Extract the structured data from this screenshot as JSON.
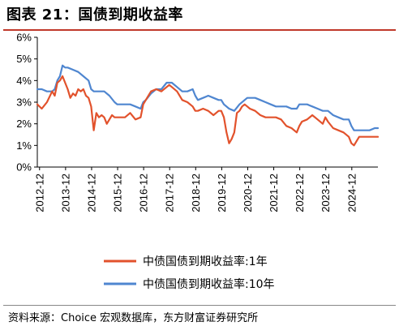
{
  "header": {
    "title": "图表 21：国债到期收益率"
  },
  "footer": {
    "source": "资料来源：Choice 宏观数据库，东方财富证券研究所"
  },
  "colors": {
    "series_1y": "#e2522c",
    "series_10y": "#4f86d0",
    "title_rule": "#c0392b"
  },
  "chart_data": {
    "type": "line",
    "title": "图表 21：国债到期收益率",
    "xlabel": "",
    "ylabel": "",
    "xlim": [
      2012.83,
      2025.92
    ],
    "ylim": [
      0,
      6
    ],
    "y_ticks": [
      "0%",
      "1%",
      "2%",
      "3%",
      "4%",
      "5%",
      "6%"
    ],
    "x_ticks": [
      "2012-12",
      "2013-12",
      "2014-12",
      "2015-12",
      "2016-12",
      "2017-12",
      "2018-12",
      "2019-12",
      "2020-12",
      "2021-12",
      "2022-12",
      "2023-12",
      "2024-12"
    ],
    "grid": false,
    "legend_position": "bottom",
    "series": [
      {
        "name": "中债国债到期收益率:1年",
        "x": [
          2012.83,
          2013.0,
          2013.2,
          2013.4,
          2013.5,
          2013.6,
          2013.7,
          2013.8,
          2013.9,
          2014.0,
          2014.1,
          2014.2,
          2014.3,
          2014.4,
          2014.5,
          2014.6,
          2014.7,
          2014.8,
          2014.9,
          2015.0,
          2015.1,
          2015.2,
          2015.3,
          2015.4,
          2015.5,
          2015.6,
          2015.7,
          2015.8,
          2015.9,
          2016.0,
          2016.2,
          2016.4,
          2016.6,
          2016.8,
          2016.9,
          2017.0,
          2017.2,
          2017.4,
          2017.6,
          2017.8,
          2017.9,
          2018.0,
          2018.2,
          2018.4,
          2018.6,
          2018.8,
          2018.9,
          2019.0,
          2019.2,
          2019.4,
          2019.6,
          2019.8,
          2019.9,
          2020.0,
          2020.1,
          2020.2,
          2020.3,
          2020.4,
          2020.5,
          2020.6,
          2020.7,
          2020.8,
          2020.9,
          2021.0,
          2021.2,
          2021.4,
          2021.6,
          2021.8,
          2022.0,
          2022.2,
          2022.4,
          2022.6,
          2022.8,
          2022.9,
          2023.0,
          2023.2,
          2023.4,
          2023.6,
          2023.8,
          2023.9,
          2024.0,
          2024.2,
          2024.4,
          2024.6,
          2024.8,
          2024.9,
          2025.0,
          2025.2,
          2025.4,
          2025.6,
          2025.8,
          2025.92
        ],
        "y": [
          2.9,
          2.7,
          3.0,
          3.5,
          3.3,
          3.9,
          4.0,
          4.2,
          3.9,
          3.6,
          3.2,
          3.4,
          3.3,
          3.6,
          3.5,
          3.6,
          3.3,
          3.2,
          2.8,
          1.7,
          2.5,
          2.3,
          2.4,
          2.3,
          2.0,
          2.2,
          2.4,
          2.3,
          2.3,
          2.3,
          2.3,
          2.5,
          2.2,
          2.3,
          2.9,
          3.1,
          3.5,
          3.6,
          3.5,
          3.7,
          3.8,
          3.7,
          3.5,
          3.1,
          3.0,
          2.8,
          2.6,
          2.6,
          2.7,
          2.6,
          2.4,
          2.6,
          2.6,
          2.3,
          1.6,
          1.1,
          1.3,
          1.6,
          2.5,
          2.6,
          2.8,
          2.9,
          2.8,
          2.7,
          2.6,
          2.4,
          2.3,
          2.3,
          2.3,
          2.2,
          1.9,
          1.8,
          1.6,
          1.9,
          2.1,
          2.2,
          2.4,
          2.2,
          2.0,
          2.3,
          2.1,
          1.8,
          1.7,
          1.6,
          1.4,
          1.1,
          1.0,
          1.4,
          1.4,
          1.4,
          1.4,
          1.4
        ]
      },
      {
        "name": "中债国债到期收益率:10年",
        "x": [
          2012.83,
          2013.0,
          2013.2,
          2013.4,
          2013.5,
          2013.6,
          2013.7,
          2013.8,
          2013.9,
          2014.0,
          2014.2,
          2014.4,
          2014.6,
          2014.8,
          2014.9,
          2015.0,
          2015.2,
          2015.4,
          2015.6,
          2015.8,
          2015.9,
          2016.0,
          2016.2,
          2016.4,
          2016.6,
          2016.8,
          2016.9,
          2017.0,
          2017.2,
          2017.4,
          2017.6,
          2017.8,
          2017.9,
          2018.0,
          2018.2,
          2018.4,
          2018.6,
          2018.8,
          2018.9,
          2019.0,
          2019.2,
          2019.4,
          2019.6,
          2019.8,
          2019.9,
          2020.0,
          2020.2,
          2020.4,
          2020.6,
          2020.8,
          2020.9,
          2021.0,
          2021.2,
          2021.4,
          2021.6,
          2021.8,
          2022.0,
          2022.2,
          2022.4,
          2022.6,
          2022.8,
          2022.9,
          2023.0,
          2023.2,
          2023.4,
          2023.6,
          2023.8,
          2023.9,
          2024.0,
          2024.2,
          2024.4,
          2024.6,
          2024.8,
          2024.9,
          2025.0,
          2025.2,
          2025.4,
          2025.6,
          2025.8,
          2025.92
        ],
        "y": [
          3.6,
          3.6,
          3.5,
          3.5,
          3.6,
          4.0,
          4.2,
          4.7,
          4.6,
          4.6,
          4.5,
          4.4,
          4.2,
          4.0,
          3.6,
          3.5,
          3.5,
          3.5,
          3.3,
          3.0,
          2.9,
          2.9,
          2.9,
          2.9,
          2.8,
          2.7,
          3.0,
          3.1,
          3.4,
          3.6,
          3.6,
          3.9,
          3.9,
          3.9,
          3.7,
          3.5,
          3.5,
          3.6,
          3.3,
          3.1,
          3.2,
          3.3,
          3.2,
          3.1,
          3.1,
          2.9,
          2.7,
          2.6,
          2.9,
          3.1,
          3.2,
          3.2,
          3.2,
          3.1,
          3.0,
          2.9,
          2.8,
          2.8,
          2.8,
          2.7,
          2.7,
          2.9,
          2.9,
          2.9,
          2.8,
          2.7,
          2.6,
          2.6,
          2.6,
          2.4,
          2.3,
          2.2,
          2.2,
          1.9,
          1.7,
          1.7,
          1.7,
          1.7,
          1.8,
          1.8
        ]
      }
    ]
  }
}
